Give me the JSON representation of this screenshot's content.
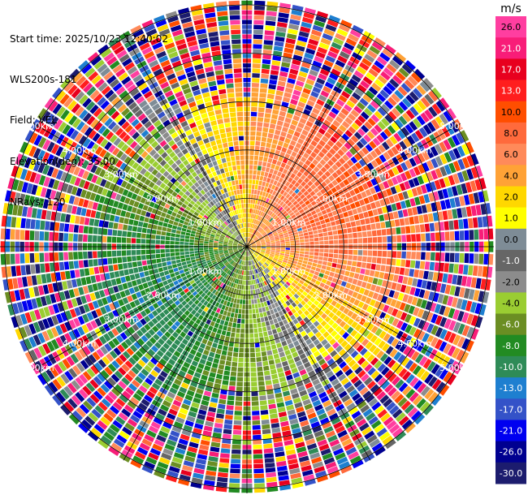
{
  "header": {
    "start_time": "Start time: 2025/10/23 12:40:02",
    "instrument": "WLS200s-181",
    "field": "Field: VEL",
    "elevation": "Elevation(deg): 35.00",
    "nrays": "NRays: 120"
  },
  "chart_data": {
    "type": "heatmap",
    "projection": "polar-ppi",
    "field": "VEL",
    "units": "m/s",
    "elevation_deg": 35.0,
    "nrays": 120,
    "range_rings_km": [
      1,
      2,
      3,
      4,
      5
    ],
    "range_ring_labels": [
      "1.00km",
      "2.00km",
      "3.00km",
      "4.00km",
      "5.00km"
    ],
    "max_range_km": 5.1,
    "colorbar": {
      "title": "m/s",
      "tick_labels": [
        "26.0",
        "21.0",
        "17.0",
        "13.0",
        "10.0",
        "8.0",
        "6.0",
        "4.0",
        "2.0",
        "1.0",
        "0.0",
        "-1.0",
        "-2.0",
        "-4.0",
        "-6.0",
        "-8.0",
        "-10.0",
        "-13.0",
        "-17.0",
        "-21.0",
        "-26.0",
        "-30.0"
      ],
      "bins": [
        {
          "min": 26,
          "max": 30,
          "color": "#ff3ea0"
        },
        {
          "min": 21,
          "max": 26,
          "color": "#f81d78"
        },
        {
          "min": 17,
          "max": 21,
          "color": "#e8001e"
        },
        {
          "min": 13,
          "max": 17,
          "color": "#ff1e1e"
        },
        {
          "min": 10,
          "max": 13,
          "color": "#ff4e00"
        },
        {
          "min": 8,
          "max": 10,
          "color": "#ff6a3c"
        },
        {
          "min": 6,
          "max": 8,
          "color": "#ff8a5a"
        },
        {
          "min": 4,
          "max": 6,
          "color": "#ffa236"
        },
        {
          "min": 2,
          "max": 4,
          "color": "#ffd700"
        },
        {
          "min": 1,
          "max": 2,
          "color": "#ffff00"
        },
        {
          "min": 0,
          "max": 1,
          "color": "#7e8c96"
        },
        {
          "min": -1,
          "max": 0,
          "color": "#666666"
        },
        {
          "min": -2,
          "max": -1,
          "color": "#8c8c8c"
        },
        {
          "min": -4,
          "max": -2,
          "color": "#9acd32"
        },
        {
          "min": -6,
          "max": -4,
          "color": "#6b8e23"
        },
        {
          "min": -8,
          "max": -6,
          "color": "#228b22"
        },
        {
          "min": -10,
          "max": -8,
          "color": "#2e8b57"
        },
        {
          "min": -13,
          "max": -10,
          "color": "#1e7fd0"
        },
        {
          "min": -17,
          "max": -13,
          "color": "#3452c8"
        },
        {
          "min": -21,
          "max": -17,
          "color": "#0000f0"
        },
        {
          "min": -26,
          "max": -21,
          "color": "#000090"
        },
        {
          "min": -30,
          "max": -26,
          "color": "#1c1c6e"
        }
      ]
    },
    "velocity_pattern": {
      "description": "inner ~3km dipole: positive (warm) toward upper-right/east, negative (green/blue) toward lower-left/west; outer ranges noisy",
      "positive_peak_azimuth_deg": 60,
      "amplitude_mps": 9,
      "coherent_range_km": 3.2
    }
  }
}
